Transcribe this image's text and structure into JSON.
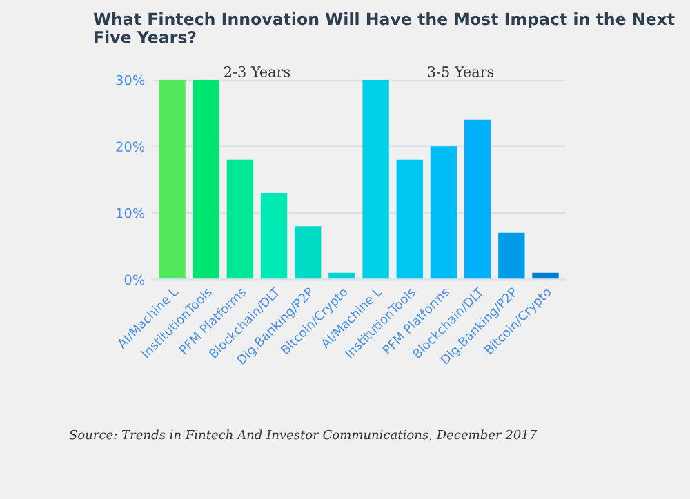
{
  "chart_data": {
    "type": "bar",
    "title": "What Fintech Innovation Will Have the Most Impact in the Next Five Years?",
    "categories": [
      "AI/Machine L",
      "InstitutionTools",
      "PFM Platforms",
      "Blockchain/DLT",
      "Dig.Banking/P2P",
      "Bitcoin/Crypto",
      "AI/Machine L",
      "InstitutionTools",
      "PFM Platforms",
      "Blockchain/DLT",
      "Dig.Banking/P2P",
      "Bitcoin/Crypto"
    ],
    "values": [
      30,
      30,
      18,
      13,
      8,
      1,
      30,
      18,
      20,
      24,
      7,
      1
    ],
    "colors": [
      "#52e85c",
      "#00e472",
      "#00e896",
      "#00e8b4",
      "#00dcc4",
      "#00d4d4",
      "#00d0e8",
      "#00c6f2",
      "#00bcf6",
      "#00b0fa",
      "#009ce8",
      "#0080d0"
    ],
    "annotations": [
      "2-3 Years",
      "3-5 Years",
      "Source: Trends in Fintech And Investor Communications, December 2017"
    ],
    "ylim": [
      0,
      30
    ],
    "yticks": [
      {
        "value": 0,
        "label": "0%"
      },
      {
        "value": 10,
        "label": "10%"
      },
      {
        "value": 20,
        "label": "20%"
      },
      {
        "value": 30,
        "label": "30%"
      }
    ],
    "grid": "y"
  }
}
